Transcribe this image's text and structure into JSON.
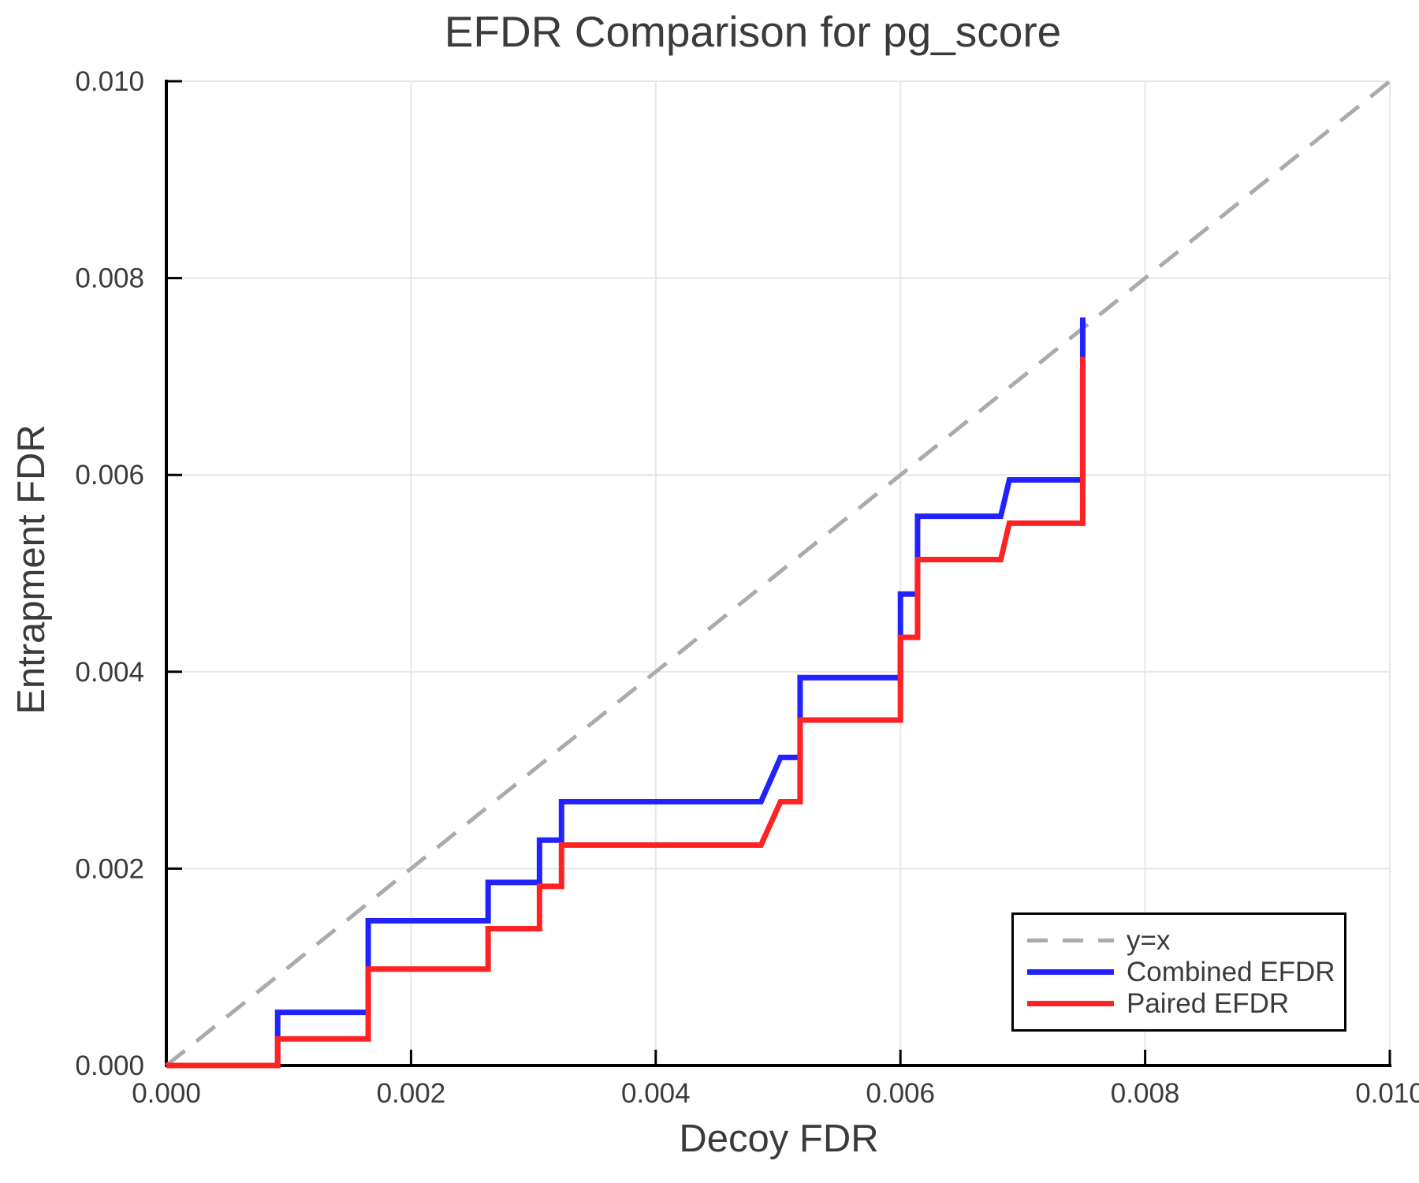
{
  "chart_data": {
    "type": "line",
    "title": "EFDR Comparison for pg_score",
    "xlabel": "Decoy FDR",
    "ylabel": "Entrapment FDR",
    "xlim": [
      0.0,
      0.01
    ],
    "ylim": [
      0.0,
      0.01
    ],
    "x_ticks": [
      0.0,
      0.002,
      0.004,
      0.006,
      0.008,
      0.01
    ],
    "x_tick_labels": [
      "0.000",
      "0.002",
      "0.004",
      "0.006",
      "0.008",
      "0.010"
    ],
    "y_ticks": [
      0.0,
      0.002,
      0.004,
      0.006,
      0.008,
      0.01
    ],
    "y_tick_labels": [
      "0.000",
      "0.002",
      "0.004",
      "0.006",
      "0.008",
      "0.010"
    ],
    "grid": true,
    "legend_position": "lower right",
    "colors": {
      "identity_line": "#ababab",
      "combined_efdr": "#2222ff",
      "paired_efdr": "#ff2222",
      "grid": "#e7e7e7",
      "axis": "#000000",
      "text": "#3b3b3b"
    },
    "series": [
      {
        "name": "y=x",
        "style": "dashed",
        "color": "#ababab",
        "points": [
          [
            0.0,
            0.0
          ],
          [
            0.01,
            0.01
          ]
        ]
      },
      {
        "name": "Combined EFDR",
        "style": "solid",
        "color": "#2222ff",
        "points": [
          [
            0.0,
            0.0
          ],
          [
            0.00091,
            0.0
          ],
          [
            0.00091,
            0.00054
          ],
          [
            0.00165,
            0.00054
          ],
          [
            0.00165,
            0.00147
          ],
          [
            0.00263,
            0.00147
          ],
          [
            0.00263,
            0.00186
          ],
          [
            0.00305,
            0.00186
          ],
          [
            0.00305,
            0.00229
          ],
          [
            0.00323,
            0.00229
          ],
          [
            0.00323,
            0.00268
          ],
          [
            0.00486,
            0.00268
          ],
          [
            0.00502,
            0.00313
          ],
          [
            0.00518,
            0.00313
          ],
          [
            0.00518,
            0.00394
          ],
          [
            0.006,
            0.00394
          ],
          [
            0.006,
            0.00479
          ],
          [
            0.00614,
            0.00479
          ],
          [
            0.00614,
            0.00558
          ],
          [
            0.00682,
            0.00558
          ],
          [
            0.00689,
            0.00595
          ],
          [
            0.00749,
            0.00595
          ],
          [
            0.00749,
            0.0076
          ]
        ]
      },
      {
        "name": "Paired EFDR",
        "style": "solid",
        "color": "#ff2222",
        "points": [
          [
            0.0,
            0.0
          ],
          [
            0.00091,
            0.0
          ],
          [
            0.00091,
            0.00027
          ],
          [
            0.00165,
            0.00027
          ],
          [
            0.00165,
            0.00098
          ],
          [
            0.00263,
            0.00098
          ],
          [
            0.00263,
            0.00139
          ],
          [
            0.00305,
            0.00139
          ],
          [
            0.00305,
            0.00182
          ],
          [
            0.00323,
            0.00182
          ],
          [
            0.00323,
            0.00224
          ],
          [
            0.00486,
            0.00224
          ],
          [
            0.00502,
            0.00268
          ],
          [
            0.00518,
            0.00268
          ],
          [
            0.00518,
            0.00351
          ],
          [
            0.006,
            0.00351
          ],
          [
            0.006,
            0.00435
          ],
          [
            0.00614,
            0.00435
          ],
          [
            0.00614,
            0.00514
          ],
          [
            0.00682,
            0.00514
          ],
          [
            0.00689,
            0.00551
          ],
          [
            0.00749,
            0.00551
          ],
          [
            0.00749,
            0.0072
          ]
        ]
      }
    ]
  }
}
